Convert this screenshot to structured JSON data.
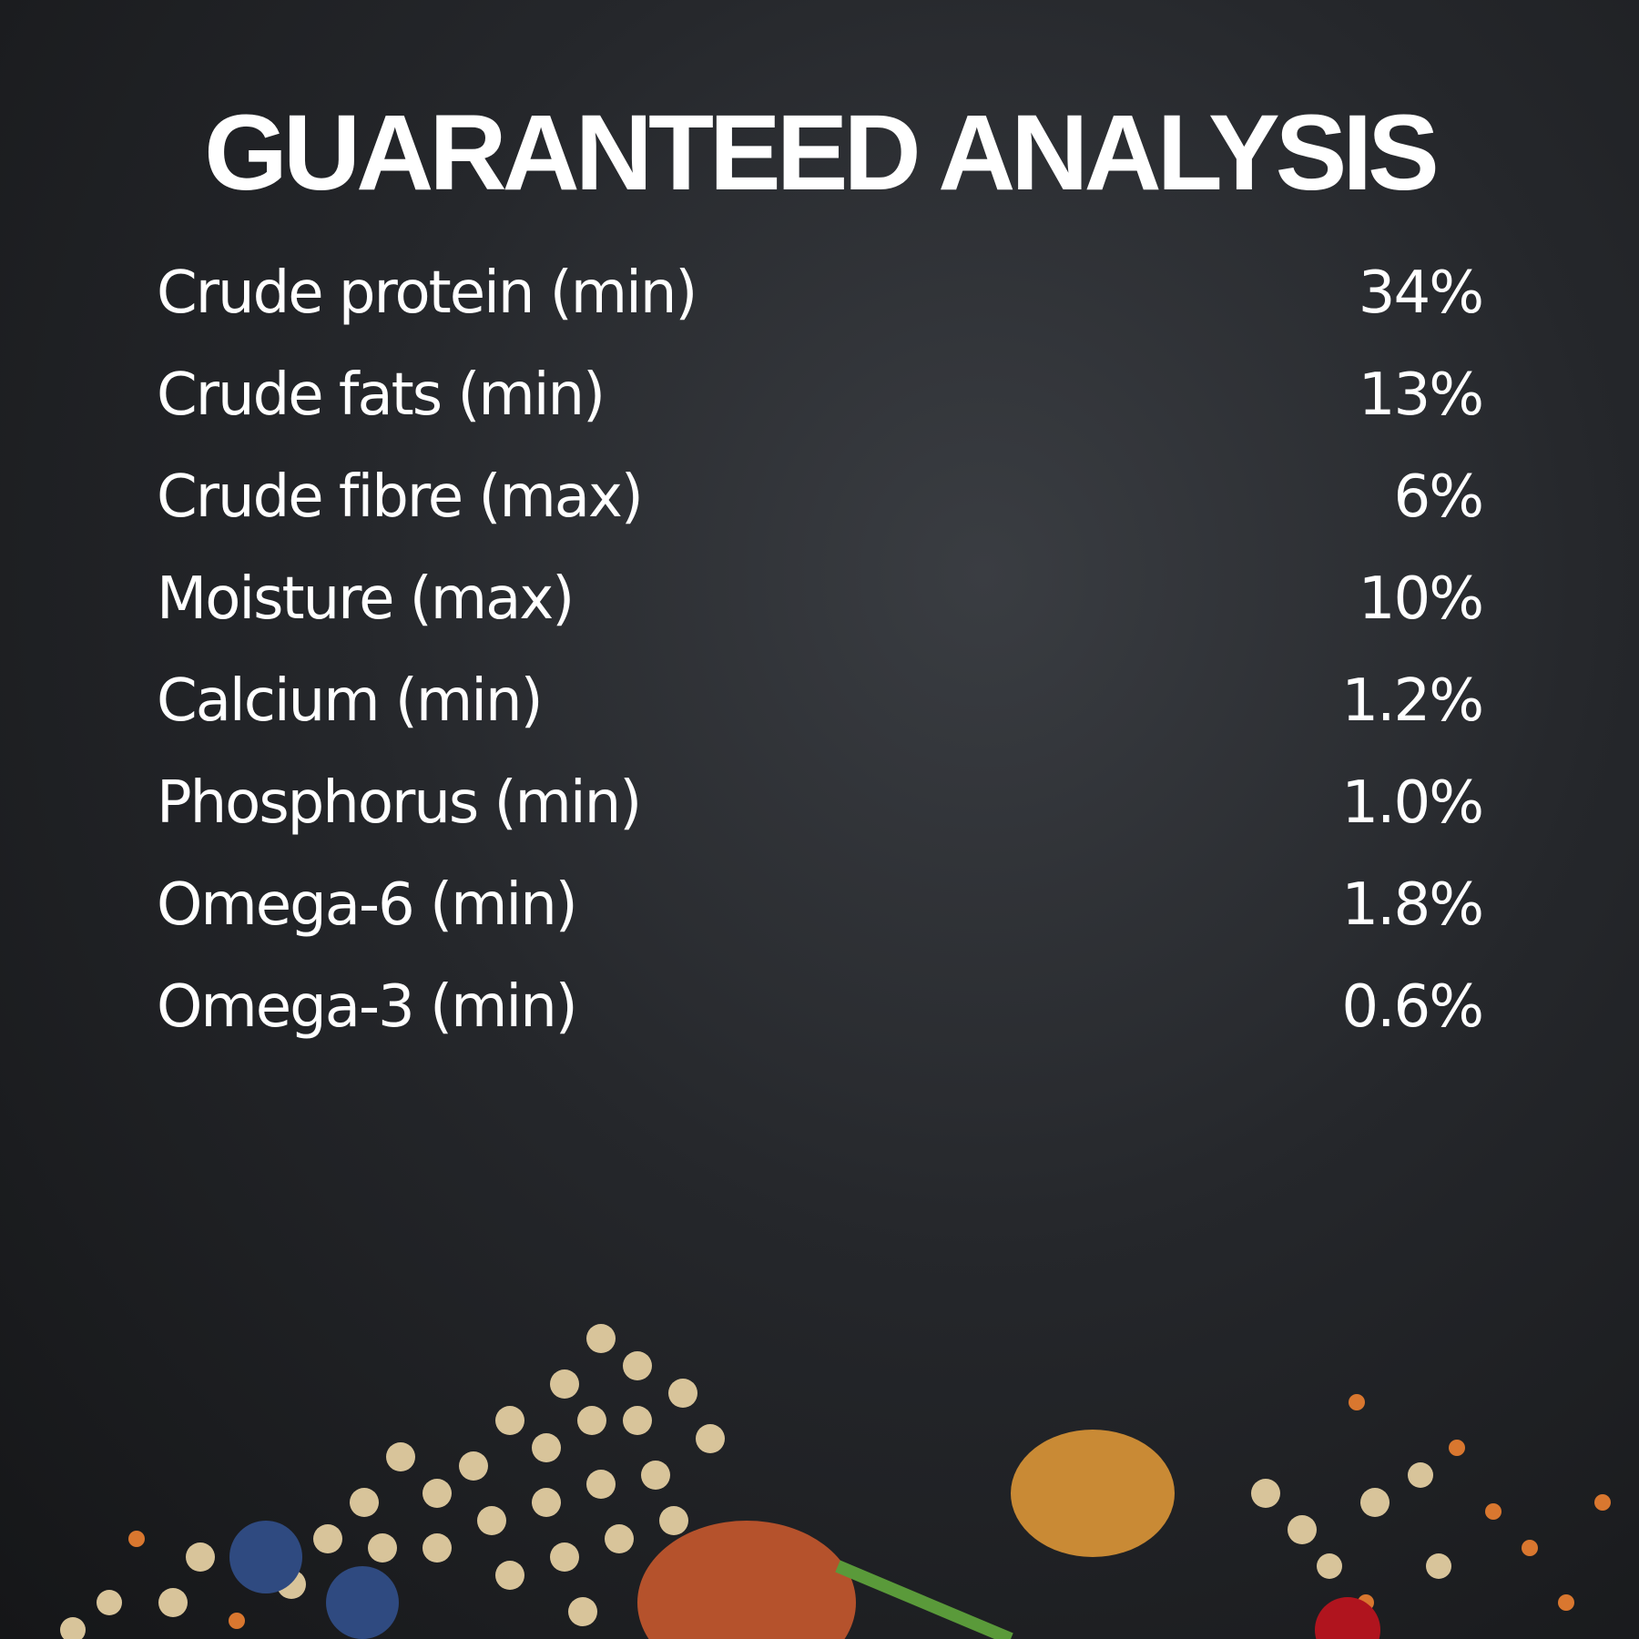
{
  "title": "GUARANTEED ANALYSIS",
  "rows": [
    {
      "label": "Crude protein (min)",
      "value": "34%"
    },
    {
      "label": "Crude fats (min)",
      "value": "13%"
    },
    {
      "label": "Crude fibre (max)",
      "value": "6%"
    },
    {
      "label": "Moisture (max)",
      "value": "10%"
    },
    {
      "label": "Calcium (min)",
      "value": "1.2%"
    },
    {
      "label": "Phosphorus (min)",
      "value": "1.0%"
    },
    {
      "label": "Omega-6 (min)",
      "value": "1.8%"
    },
    {
      "label": "Omega-3 (min)",
      "value": "0.6%"
    }
  ]
}
